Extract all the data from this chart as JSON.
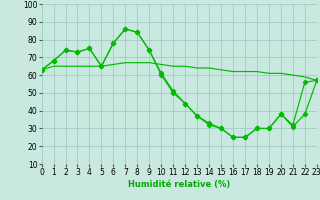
{
  "xlabel": "Humidité relative (%)",
  "bg_color": "#c8e8e0",
  "grid_color": "#a0ccc0",
  "line_color": "#00bb00",
  "xlim": [
    0,
    23
  ],
  "ylim": [
    10,
    100
  ],
  "yticks": [
    10,
    20,
    30,
    40,
    50,
    60,
    70,
    80,
    90,
    100
  ],
  "xticks": [
    0,
    1,
    2,
    3,
    4,
    5,
    6,
    7,
    8,
    9,
    10,
    11,
    12,
    13,
    14,
    15,
    16,
    17,
    18,
    19,
    20,
    21,
    22,
    23
  ],
  "series1_x": [
    0,
    1,
    2,
    3,
    4,
    5,
    6,
    7,
    8,
    9,
    10,
    11,
    12,
    13,
    14,
    15,
    16,
    17,
    18,
    19,
    20,
    21,
    22,
    23
  ],
  "series1_y": [
    63,
    68,
    74,
    73,
    75,
    65,
    78,
    86,
    84,
    74,
    61,
    51,
    44,
    37,
    32,
    30,
    25,
    25,
    30,
    30,
    38,
    31,
    38,
    57
  ],
  "series2_x": [
    0,
    1,
    2,
    3,
    4,
    5,
    6,
    7,
    8,
    9,
    10,
    11,
    12,
    13,
    14,
    15,
    16,
    17,
    18,
    19,
    20,
    21,
    22,
    23
  ],
  "series2_y": [
    63,
    65,
    65,
    65,
    65,
    65,
    66,
    67,
    67,
    67,
    66,
    65,
    65,
    64,
    64,
    63,
    62,
    62,
    62,
    61,
    61,
    60,
    59,
    57
  ],
  "series3_x": [
    0,
    1,
    2,
    3,
    4,
    5,
    6,
    7,
    8,
    9,
    10,
    11,
    12,
    13,
    14,
    15,
    16,
    17,
    18,
    19,
    20,
    21,
    22,
    23
  ],
  "series3_y": [
    63,
    68,
    74,
    73,
    75,
    65,
    78,
    86,
    84,
    74,
    60,
    50,
    44,
    37,
    33,
    30,
    25,
    25,
    30,
    30,
    38,
    32,
    56,
    57
  ],
  "xlabel_color": "#00aa00",
  "xlabel_fontsize": 6.0,
  "tick_fontsize": 5.5
}
